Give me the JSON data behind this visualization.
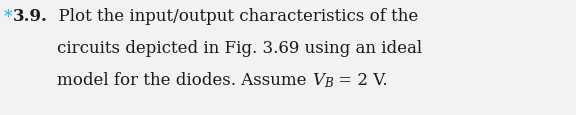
{
  "asterisk": "*",
  "asterisk_color": "#33bbee",
  "problem_num": "3.9.",
  "line1_suffix": "  Plot the input/output characteristics of the",
  "line2": "circuits depicted in Fig. 3.69 using an ideal",
  "line3_pre": "model for the diodes. Assume ",
  "line3_V": "V",
  "line3_sub": "B",
  "line3_post": " = 2 V.",
  "background_color": "#f2f2f2",
  "text_color": "#1a1a1a",
  "fontsize": 12.0
}
